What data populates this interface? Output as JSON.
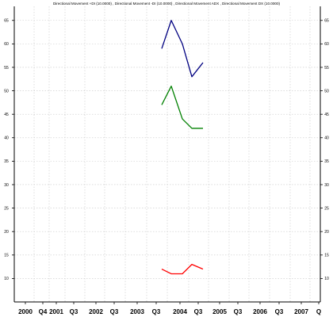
{
  "chart_data": {
    "type": "line",
    "title": "Directional Movement +DI (10.0000) , Directional Movement -DI (10.0000) , Directional Movement ADX , Directional Movement DX (10.0000)",
    "ylim": [
      5,
      68
    ],
    "y_ticks": [
      10,
      15,
      20,
      25,
      30,
      35,
      40,
      45,
      50,
      55,
      60,
      65
    ],
    "x_tick_labels": [
      "2000",
      "Q4",
      "2001",
      "Q3",
      "2002",
      "Q3",
      "2003",
      "Q3",
      "2004",
      "Q3",
      "2005",
      "Q3",
      "2006",
      "Q3",
      "2007",
      "Q"
    ],
    "grid": true,
    "series": [
      {
        "color": "#000080",
        "x": [
          "2003-Q4a",
          "2003-Q4b",
          "2004-Q1",
          "2004-Q2",
          "2004-Q3"
        ],
        "values": [
          59,
          65,
          60,
          53,
          56
        ]
      },
      {
        "color": "#008000",
        "x": [
          "2003-Q4a",
          "2003-Q4b",
          "2004-Q1",
          "2004-Q2",
          "2004-Q3"
        ],
        "values": [
          47,
          51,
          44,
          42,
          42
        ]
      },
      {
        "color": "#ff0000",
        "x": [
          "2003-Q4a",
          "2003-Q4b",
          "2004-Q1",
          "2004-Q2",
          "2004-Q3"
        ],
        "values": [
          12,
          11,
          11,
          13,
          12
        ]
      }
    ]
  }
}
